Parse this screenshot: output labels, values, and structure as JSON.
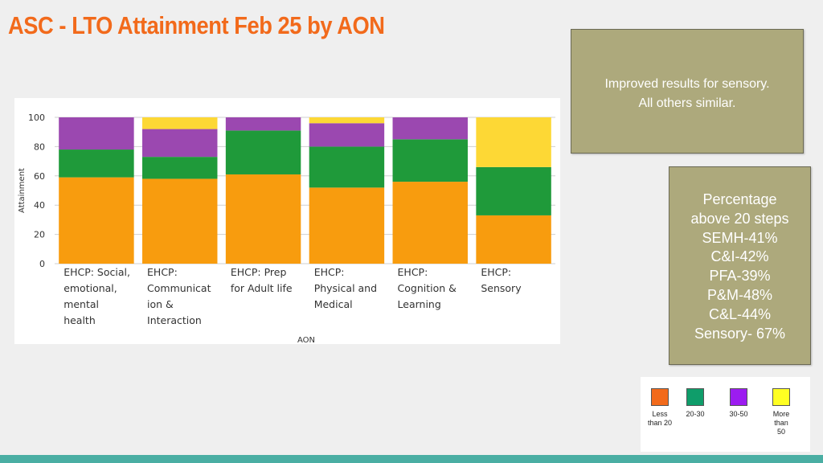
{
  "title": "ASC - LTO Attainment Feb 25 by AON",
  "colors": {
    "title": "#f26a1b",
    "less_than_20": "#f89c0e",
    "20_30": "#1f9a3a",
    "30_50": "#9b48b0",
    "more_than_50": "#fdd835",
    "note_bg": "#ada97c",
    "bottom_bar": "#4aaea3"
  },
  "note_top": {
    "lines": [
      "Improved results for sensory.",
      "All others similar."
    ]
  },
  "note_side": {
    "lines": [
      "Percentage",
      "above 20 steps",
      "SEMH-41%",
      "C&I-42%",
      "PFA-39%",
      "P&M-48%",
      "C&L-44%",
      "Sensory- 67%"
    ]
  },
  "legend": [
    {
      "label": "Less\nthan 20",
      "color": "#f26a1b"
    },
    {
      "label": "20-30",
      "color": "#0f9d6a"
    },
    {
      "label": "30-50",
      "color": "#9c1cf0"
    },
    {
      "label": "More\nthan\n50",
      "color": "#ffff22"
    }
  ],
  "chart_data": {
    "type": "bar",
    "stacked": true,
    "xlabel": "AON",
    "ylabel": "Attainment",
    "ylim": [
      0,
      100
    ],
    "yticks": [
      0,
      20,
      40,
      60,
      80,
      100
    ],
    "grid": true,
    "categories": [
      [
        "EHCP: Social,",
        "emotional,",
        "mental",
        "health"
      ],
      [
        "EHCP:",
        "Communicat",
        "ion &",
        "Interaction"
      ],
      [
        "EHCP: Prep",
        "for Adult life"
      ],
      [
        "EHCP:",
        "Physical and",
        "Medical"
      ],
      [
        "EHCP:",
        "Cognition &",
        "Learning"
      ],
      [
        "EHCP:",
        "Sensory"
      ]
    ],
    "series": [
      {
        "color": "#f89c0e",
        "values": [
          59,
          58,
          61,
          52,
          56,
          33
        ]
      },
      {
        "color": "#1f9a3a",
        "values": [
          19,
          15,
          30,
          28,
          29,
          33
        ]
      },
      {
        "color": "#9b48b0",
        "values": [
          22,
          19,
          9,
          16,
          15,
          0
        ]
      },
      {
        "color": "#fdd835",
        "values": [
          0,
          8,
          0,
          4,
          0,
          34
        ]
      }
    ]
  }
}
